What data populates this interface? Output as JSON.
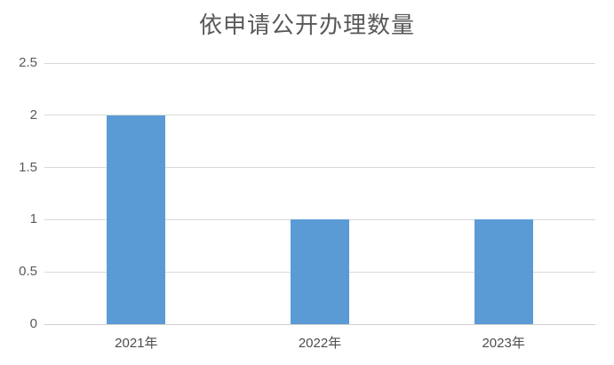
{
  "chart_data": {
    "type": "bar",
    "title": "依申请公开办理数量",
    "categories": [
      "2021年",
      "2022年",
      "2023年"
    ],
    "values": [
      2,
      1,
      1
    ],
    "xlabel": "",
    "ylabel": "",
    "ylim": [
      0,
      2.5
    ],
    "yticks": [
      0,
      0.5,
      1,
      1.5,
      2,
      2.5
    ],
    "grid": true,
    "legend_position": "none",
    "colors": {
      "bar": "#5B9BD5",
      "gridline": "#D9D9D9",
      "axis_line": "#D0D0D0",
      "title_text": "#595959",
      "tick_text": "#595959",
      "background": "#FFFFFF"
    }
  }
}
